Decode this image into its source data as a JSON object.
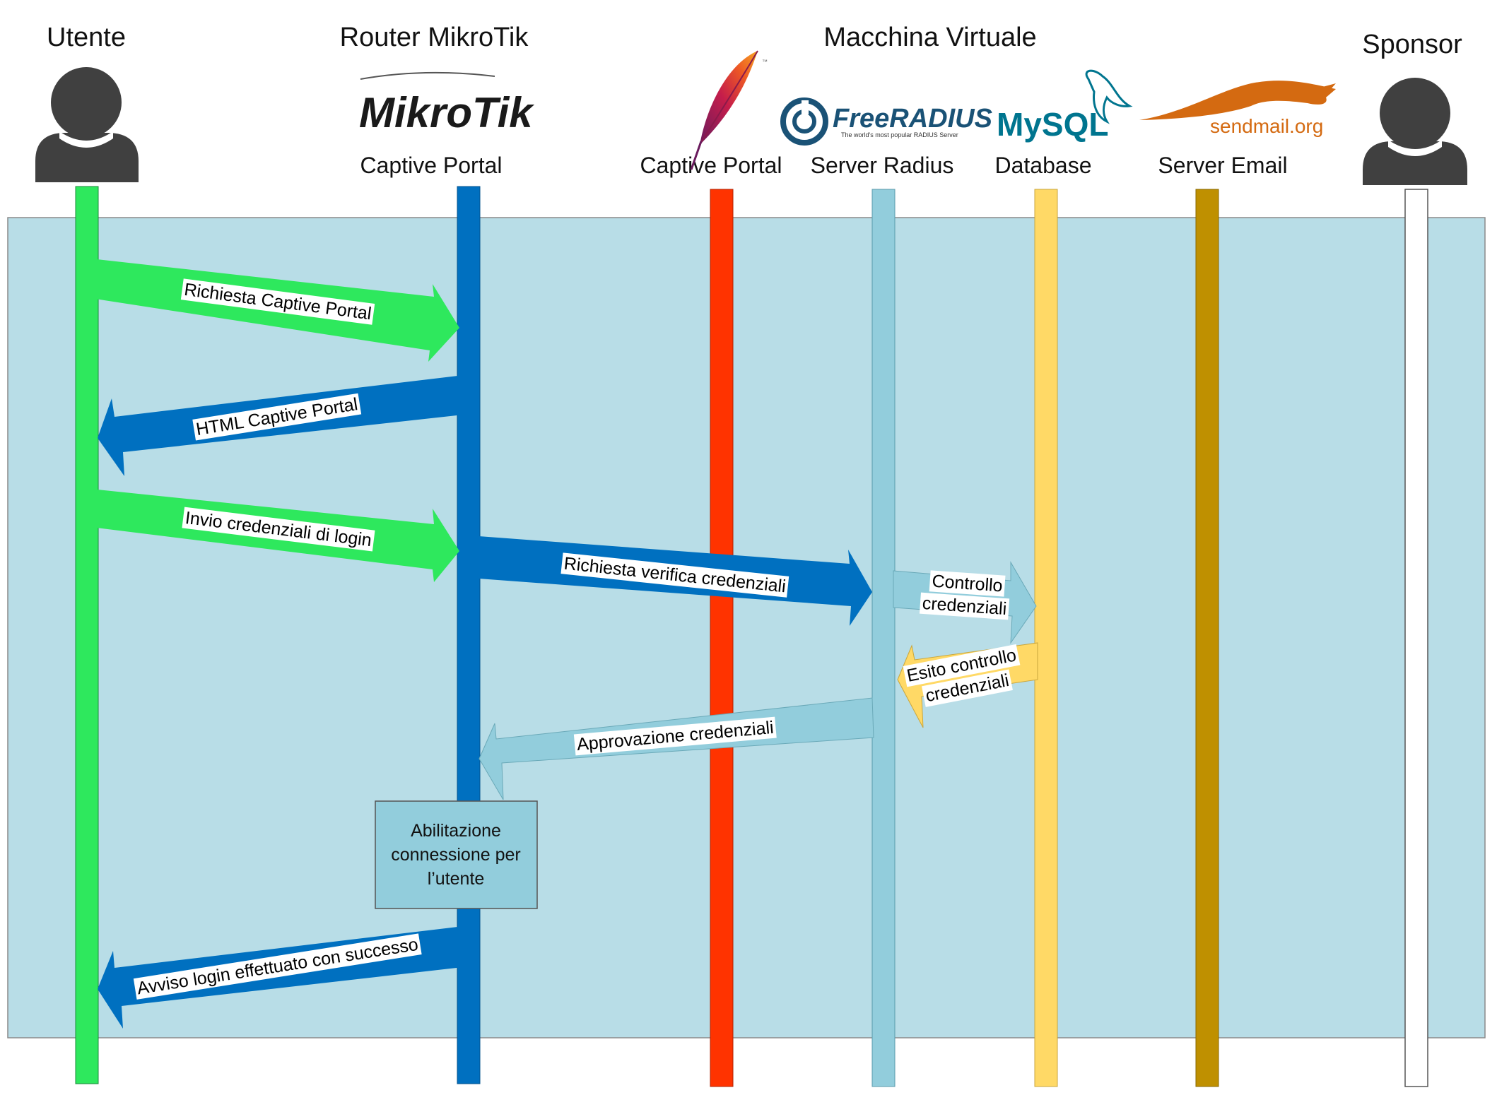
{
  "participants": {
    "utente": "Utente",
    "router": "Router MikroTik",
    "vm": "Macchina Virtuale",
    "sponsor": "Sponsor"
  },
  "logos": {
    "mikrotik": "MikroTik",
    "freeradius": "FreeRADIUS",
    "freeradius_tagline": "The world's most popular RADIUS Server",
    "mysql": "MySQL",
    "sendmail": "sendmail.org"
  },
  "lifeline_labels": {
    "router": "Captive Portal",
    "apache": "Captive Portal",
    "radius": "Server Radius",
    "database": "Database",
    "email": "Server Email"
  },
  "colors": {
    "background_band": "#b8dde7",
    "utente": "#2ee85d",
    "router": "#0070c0",
    "apache": "#ff3300",
    "radius": "#92cddc",
    "database": "#ffd966",
    "email": "#bf9000",
    "sponsor": "#ffffff",
    "person": "#404040"
  },
  "messages": [
    {
      "label": "Richiesta Captive Portal"
    },
    {
      "label": "HTML Captive Portal"
    },
    {
      "label": "Invio credenziali di login"
    },
    {
      "label": "Richiesta verifica credenziali"
    },
    {
      "label_line1": "Controllo",
      "label_line2": "credenziali"
    },
    {
      "label_line1": "Esito controllo",
      "label_line2": "credenziali"
    },
    {
      "label": "Approvazione credenziali"
    },
    {
      "label": "Avviso login effettuato con successo"
    }
  ],
  "activation_box": {
    "line1": "Abilitazione",
    "line2": "connessione per",
    "line3": "l’utente"
  }
}
